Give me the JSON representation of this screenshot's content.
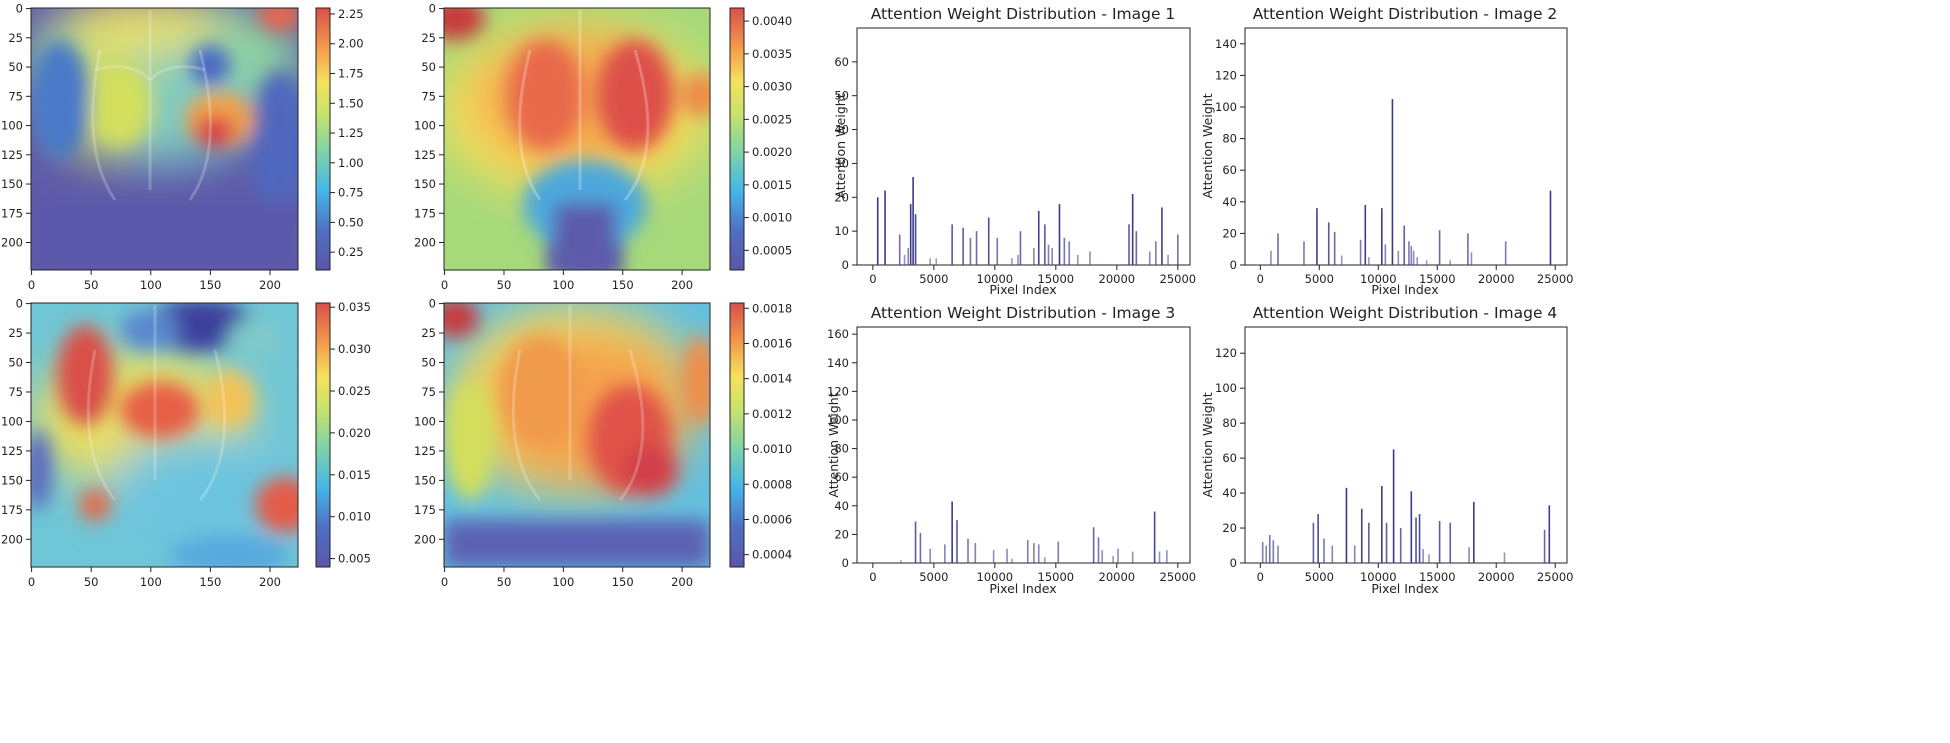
{
  "heatmaps": [
    {
      "name": "heatmap-1",
      "x_ticks": [
        "0",
        "50",
        "100",
        "150",
        "200"
      ],
      "y_ticks": [
        "0",
        "25",
        "50",
        "75",
        "100",
        "125",
        "150",
        "175",
        "200"
      ],
      "colorbar": {
        "ticks": [
          "0.25",
          "0.50",
          "0.75",
          "1.00",
          "1.25",
          "1.50",
          "1.75",
          "2.00",
          "2.25"
        ],
        "min": 0.1,
        "max": 2.3
      }
    },
    {
      "name": "heatmap-2",
      "x_ticks": [
        "0",
        "50",
        "100",
        "150",
        "200"
      ],
      "y_ticks": [
        "0",
        "25",
        "50",
        "75",
        "100",
        "125",
        "150",
        "175",
        "200"
      ],
      "colorbar": {
        "ticks": [
          "0.0005",
          "0.0010",
          "0.0015",
          "0.0020",
          "0.0025",
          "0.0030",
          "0.0035",
          "0.0040"
        ],
        "min": 0.0002,
        "max": 0.0042
      }
    },
    {
      "name": "heatmap-3",
      "x_ticks": [
        "0",
        "50",
        "100",
        "150",
        "200"
      ],
      "y_ticks": [
        "0",
        "25",
        "50",
        "75",
        "100",
        "125",
        "150",
        "175",
        "200"
      ],
      "colorbar": {
        "ticks": [
          "0.005",
          "0.010",
          "0.015",
          "0.020",
          "0.025",
          "0.030",
          "0.035"
        ],
        "min": 0.004,
        "max": 0.0355
      }
    },
    {
      "name": "heatmap-4",
      "x_ticks": [
        "0",
        "50",
        "100",
        "150",
        "200"
      ],
      "y_ticks": [
        "0",
        "25",
        "50",
        "75",
        "100",
        "125",
        "150",
        "175",
        "200"
      ],
      "colorbar": {
        "ticks": [
          "0.0004",
          "0.0006",
          "0.0008",
          "0.0010",
          "0.0012",
          "0.0014",
          "0.0016",
          "0.0018"
        ],
        "min": 0.00033,
        "max": 0.00183
      }
    }
  ],
  "chart_data": [
    {
      "type": "bar",
      "title": "Attention Weight Distribution - Image 1",
      "xlabel": "Pixel Index",
      "ylabel": "Attention Weight",
      "xlim": [
        -1300,
        26000
      ],
      "ylim": [
        0,
        70
      ],
      "x_ticks": [
        0,
        5000,
        10000,
        15000,
        20000,
        25000
      ],
      "y_ticks": [
        0,
        10,
        20,
        30,
        40,
        50,
        60
      ],
      "x": [
        400,
        1000,
        2200,
        2600,
        2900,
        3100,
        3300,
        3500,
        4700,
        5200,
        6500,
        7400,
        8000,
        8500,
        9500,
        10200,
        11400,
        11900,
        12100,
        13200,
        13600,
        14100,
        14400,
        14700,
        15300,
        15700,
        16100,
        16800,
        17800,
        21000,
        21300,
        21600,
        22700,
        23200,
        23700,
        24200,
        25000
      ],
      "values": [
        20,
        22,
        9,
        3,
        5,
        18,
        26,
        15,
        2,
        2,
        12,
        11,
        8,
        10,
        14,
        8,
        2,
        3,
        10,
        5,
        16,
        12,
        6,
        5,
        18,
        8,
        7,
        3,
        4,
        12,
        21,
        10,
        4,
        7,
        17,
        3,
        9
      ]
    },
    {
      "type": "bar",
      "title": "Attention Weight Distribution - Image 2",
      "xlabel": "Pixel Index",
      "ylabel": "Attention Weight",
      "xlim": [
        -1300,
        26000
      ],
      "ylim": [
        0,
        150
      ],
      "x_ticks": [
        0,
        5000,
        10000,
        15000,
        20000,
        25000
      ],
      "y_ticks": [
        0,
        20,
        40,
        60,
        80,
        100,
        120,
        140
      ],
      "x": [
        900,
        1500,
        3700,
        4800,
        5800,
        6300,
        6900,
        8500,
        8900,
        9200,
        10300,
        10600,
        11200,
        11700,
        12200,
        12600,
        12800,
        13000,
        13300,
        14100,
        15200,
        16100,
        17600,
        17900,
        20800,
        24600
      ],
      "values": [
        9,
        20,
        15,
        36,
        27,
        21,
        6,
        16,
        38,
        5,
        36,
        13,
        105,
        9,
        25,
        15,
        12,
        9,
        5,
        3,
        22,
        3,
        20,
        8,
        15,
        47
      ]
    },
    {
      "type": "bar",
      "title": "Attention Weight Distribution - Image 3",
      "xlabel": "Pixel Index",
      "ylabel": "Attention Weight",
      "xlim": [
        -1300,
        26000
      ],
      "ylim": [
        0,
        165
      ],
      "x_ticks": [
        0,
        5000,
        10000,
        15000,
        20000,
        25000
      ],
      "y_ticks": [
        0,
        20,
        40,
        60,
        80,
        100,
        120,
        140,
        160
      ],
      "x": [
        2300,
        3500,
        3900,
        4700,
        5900,
        6500,
        6900,
        7800,
        8400,
        9900,
        11000,
        11400,
        12700,
        13200,
        13600,
        14100,
        15200,
        18100,
        18500,
        18800,
        19700,
        20100,
        21300,
        23100,
        23500,
        24100
      ],
      "values": [
        2,
        29,
        21,
        10,
        13,
        43,
        30,
        17,
        14,
        9,
        10,
        3,
        16,
        14,
        13,
        4,
        15,
        25,
        18,
        9,
        5,
        10,
        8,
        36,
        8,
        9
      ]
    },
    {
      "type": "bar",
      "title": "Attention Weight Distribution - Image 4",
      "xlabel": "Pixel Index",
      "ylabel": "Attention Weight",
      "xlim": [
        -1300,
        26000
      ],
      "ylim": [
        0,
        135
      ],
      "x_ticks": [
        0,
        5000,
        10000,
        15000,
        20000,
        25000
      ],
      "y_ticks": [
        0,
        20,
        40,
        60,
        80,
        100,
        120
      ],
      "x": [
        200,
        500,
        800,
        1100,
        1500,
        4500,
        4900,
        5400,
        6100,
        7300,
        8000,
        8600,
        9200,
        10300,
        10700,
        11300,
        11900,
        12800,
        13200,
        13500,
        13800,
        14300,
        15200,
        16100,
        17700,
        18100,
        20700,
        24100,
        24500
      ],
      "values": [
        12,
        10,
        16,
        13,
        10,
        23,
        28,
        14,
        10,
        43,
        10,
        31,
        23,
        44,
        23,
        65,
        20,
        41,
        26,
        28,
        8,
        5,
        24,
        23,
        9,
        35,
        6,
        19,
        33
      ]
    }
  ]
}
